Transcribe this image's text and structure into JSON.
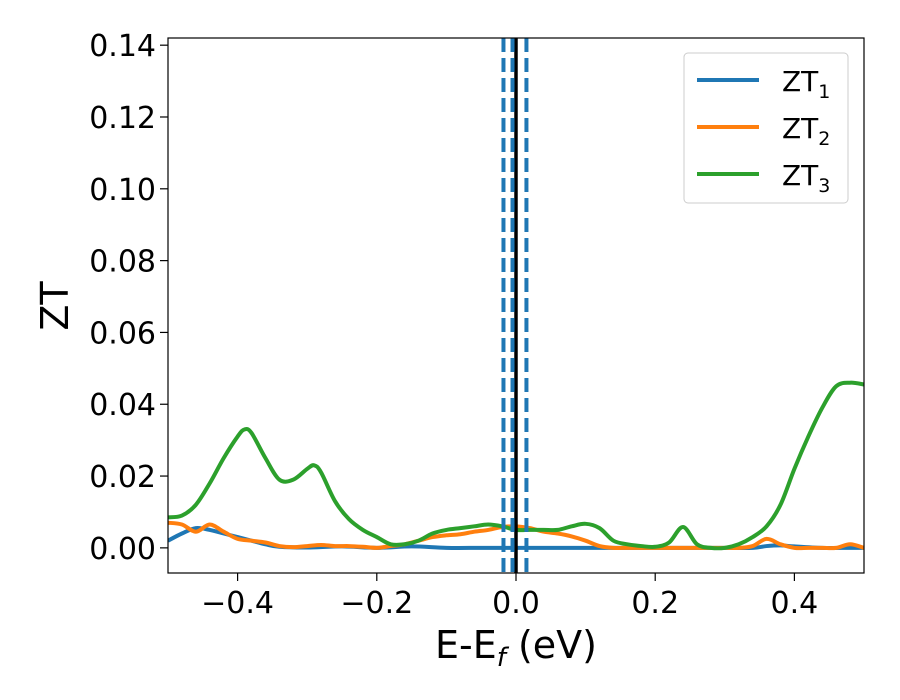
{
  "chart_data": {
    "type": "line",
    "xlabel": "E-E",
    "xlabel_sub": "f",
    "xlabel_suffix": " (eV)",
    "ylabel": "ZT",
    "xlim": [
      -0.5,
      0.5
    ],
    "ylim": [
      -0.007,
      0.142
    ],
    "x_ticks": [
      -0.4,
      -0.2,
      0.0,
      0.2,
      0.4
    ],
    "x_tick_labels": [
      "−0.4",
      "−0.2",
      "0.0",
      "0.2",
      "0.4"
    ],
    "y_ticks": [
      0.0,
      0.02,
      0.04,
      0.06,
      0.08,
      0.1,
      0.12,
      0.14
    ],
    "y_tick_labels": [
      "0.00",
      "0.02",
      "0.04",
      "0.06",
      "0.08",
      "0.10",
      "0.12",
      "0.14"
    ],
    "grid": false,
    "legend_position": "top-right",
    "reference_lines": [
      {
        "x": 0.0,
        "style": "solid",
        "color": "#000000"
      },
      {
        "x": -0.018,
        "style": "dashed",
        "color": "#1f77b4"
      },
      {
        "x": -0.005,
        "style": "dashed",
        "color": "#1f77b4"
      },
      {
        "x": 0.015,
        "style": "dashed",
        "color": "#1f77b4"
      }
    ],
    "series": [
      {
        "name": "ZT",
        "name_sub": "1",
        "color": "#1f77b4",
        "x": [
          -0.5,
          -0.48,
          -0.46,
          -0.44,
          -0.42,
          -0.4,
          -0.38,
          -0.36,
          -0.34,
          -0.3,
          -0.25,
          -0.2,
          -0.15,
          -0.1,
          -0.05,
          0.0,
          0.05,
          0.1,
          0.15,
          0.2,
          0.25,
          0.3,
          0.34,
          0.36,
          0.38,
          0.4,
          0.44,
          0.48,
          0.5
        ],
        "y": [
          0.002,
          0.004,
          0.0055,
          0.005,
          0.004,
          0.003,
          0.002,
          0.001,
          0.0003,
          0.0001,
          0.0004,
          0.0,
          0.0004,
          0.0,
          0.0,
          0.0,
          0.0,
          0.0,
          0.0,
          0.0,
          0.0,
          0.0,
          0.0,
          0.0005,
          0.0007,
          0.0004,
          0.0,
          0.0,
          0.0
        ]
      },
      {
        "name": "ZT",
        "name_sub": "2",
        "color": "#ff7f0e",
        "x": [
          -0.5,
          -0.48,
          -0.46,
          -0.44,
          -0.42,
          -0.4,
          -0.38,
          -0.36,
          -0.34,
          -0.32,
          -0.3,
          -0.28,
          -0.26,
          -0.24,
          -0.22,
          -0.2,
          -0.18,
          -0.16,
          -0.14,
          -0.12,
          -0.1,
          -0.08,
          -0.06,
          -0.04,
          -0.02,
          0.0,
          0.02,
          0.04,
          0.06,
          0.08,
          0.1,
          0.12,
          0.14,
          0.16,
          0.18,
          0.2,
          0.22,
          0.24,
          0.26,
          0.28,
          0.3,
          0.32,
          0.34,
          0.36,
          0.38,
          0.4,
          0.42,
          0.44,
          0.46,
          0.48,
          0.5
        ],
        "y": [
          0.007,
          0.0065,
          0.0045,
          0.0065,
          0.0045,
          0.0025,
          0.002,
          0.0015,
          0.0005,
          0.0002,
          0.0005,
          0.0008,
          0.0005,
          0.0005,
          0.0003,
          0.0,
          0.0005,
          0.001,
          0.002,
          0.003,
          0.0035,
          0.0038,
          0.0045,
          0.005,
          0.0058,
          0.006,
          0.0055,
          0.0045,
          0.004,
          0.0032,
          0.002,
          0.0005,
          0.0,
          0.0,
          0.0,
          0.0,
          0.0,
          0.0,
          0.0,
          0.0,
          0.0,
          0.0,
          0.0005,
          0.0025,
          0.001,
          0.0,
          0.0,
          0.0,
          0.0,
          0.001,
          0.0
        ]
      },
      {
        "name": "ZT",
        "name_sub": "3",
        "color": "#2ca02c",
        "x": [
          -0.5,
          -0.48,
          -0.46,
          -0.44,
          -0.42,
          -0.4,
          -0.39,
          -0.38,
          -0.36,
          -0.34,
          -0.32,
          -0.3,
          -0.29,
          -0.28,
          -0.26,
          -0.24,
          -0.22,
          -0.2,
          -0.18,
          -0.16,
          -0.14,
          -0.12,
          -0.1,
          -0.08,
          -0.06,
          -0.04,
          -0.02,
          0.0,
          0.02,
          0.04,
          0.06,
          0.08,
          0.1,
          0.12,
          0.14,
          0.16,
          0.18,
          0.2,
          0.22,
          0.24,
          0.26,
          0.28,
          0.3,
          0.32,
          0.34,
          0.36,
          0.38,
          0.4,
          0.42,
          0.44,
          0.46,
          0.48,
          0.5
        ],
        "y": [
          0.0085,
          0.009,
          0.012,
          0.018,
          0.025,
          0.031,
          0.033,
          0.032,
          0.025,
          0.019,
          0.019,
          0.022,
          0.023,
          0.021,
          0.013,
          0.008,
          0.005,
          0.003,
          0.001,
          0.001,
          0.002,
          0.004,
          0.005,
          0.0055,
          0.006,
          0.0065,
          0.006,
          0.005,
          0.005,
          0.005,
          0.005,
          0.006,
          0.0067,
          0.0055,
          0.002,
          0.001,
          0.0005,
          0.0003,
          0.0015,
          0.0058,
          0.001,
          0.0,
          0.0,
          0.001,
          0.003,
          0.006,
          0.012,
          0.022,
          0.031,
          0.039,
          0.045,
          0.046,
          0.0455
        ]
      }
    ]
  }
}
